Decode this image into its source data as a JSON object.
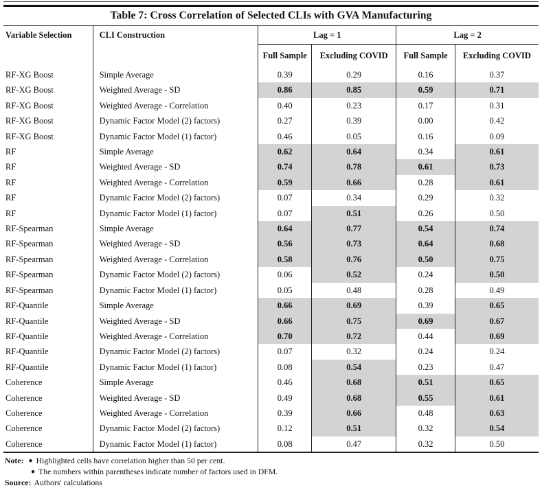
{
  "title": "Table 7: Cross Correlation of Selected CLIs with GVA Manufacturing",
  "colors": {
    "highlight": "#d3d3d4",
    "border": "#222222"
  },
  "table": {
    "columns": {
      "variable_selection": "Variable Selection",
      "cli_construction": "CLI Construction",
      "lag1": "Lag = 1",
      "lag2": "Lag = 2",
      "full_sample": "Full Sample",
      "excluding_covid": "Excluding COVID"
    },
    "rows": [
      {
        "variable": "RF-XG Boost",
        "construction": "Simple Average",
        "values": [
          "0.39",
          "0.29",
          "0.16",
          "0.37"
        ],
        "highlight": [
          0,
          0,
          0,
          0
        ]
      },
      {
        "variable": "RF-XG Boost",
        "construction": "Weighted Average - SD",
        "values": [
          "0.86",
          "0.85",
          "0.59",
          "0.71"
        ],
        "highlight": [
          1,
          1,
          1,
          1
        ]
      },
      {
        "variable": "RF-XG Boost",
        "construction": "Weighted Average - Correlation",
        "values": [
          "0.40",
          "0.23",
          "0.17",
          "0.31"
        ],
        "highlight": [
          0,
          0,
          0,
          0
        ]
      },
      {
        "variable": "RF-XG Boost",
        "construction": "Dynamic Factor Model (2) factors)",
        "values": [
          "0.27",
          "0.39",
          "0.00",
          "0.42"
        ],
        "highlight": [
          0,
          0,
          0,
          0
        ]
      },
      {
        "variable": "RF-XG Boost",
        "construction": "Dynamic Factor Model (1) factor)",
        "values": [
          "0.46",
          "0.05",
          "0.16",
          "0.09"
        ],
        "highlight": [
          0,
          0,
          0,
          0
        ]
      },
      {
        "variable": "RF",
        "construction": "Simple Average",
        "values": [
          "0.62",
          "0.64",
          "0.34",
          "0.61"
        ],
        "highlight": [
          1,
          1,
          0,
          1
        ]
      },
      {
        "variable": "RF",
        "construction": "Weighted Average - SD",
        "values": [
          "0.74",
          "0.78",
          "0.61",
          "0.73"
        ],
        "highlight": [
          1,
          1,
          1,
          1
        ]
      },
      {
        "variable": "RF",
        "construction": "Weighted Average - Correlation",
        "values": [
          "0.59",
          "0.66",
          "0.28",
          "0.61"
        ],
        "highlight": [
          1,
          1,
          0,
          1
        ]
      },
      {
        "variable": "RF",
        "construction": "Dynamic Factor Model (2) factors)",
        "values": [
          "0.07",
          "0.34",
          "0.29",
          "0.32"
        ],
        "highlight": [
          0,
          0,
          0,
          0
        ]
      },
      {
        "variable": "RF",
        "construction": "Dynamic Factor Model (1) factor)",
        "values": [
          "0.07",
          "0.51",
          "0.26",
          "0.50"
        ],
        "highlight": [
          0,
          1,
          0,
          0
        ]
      },
      {
        "variable": "RF-Spearman",
        "construction": "Simple Average",
        "values": [
          "0.64",
          "0.77",
          "0.54",
          "0.74"
        ],
        "highlight": [
          1,
          1,
          1,
          1
        ]
      },
      {
        "variable": "RF-Spearman",
        "construction": "Weighted Average - SD",
        "values": [
          "0.56",
          "0.73",
          "0.64",
          "0.68"
        ],
        "highlight": [
          1,
          1,
          1,
          1
        ]
      },
      {
        "variable": "RF-Spearman",
        "construction": "Weighted Average - Correlation",
        "values": [
          "0.58",
          "0.76",
          "0.50",
          "0.75"
        ],
        "highlight": [
          1,
          1,
          1,
          1
        ]
      },
      {
        "variable": "RF-Spearman",
        "construction": "Dynamic Factor Model (2) factors)",
        "values": [
          "0.06",
          "0.52",
          "0.24",
          "0.50"
        ],
        "highlight": [
          0,
          1,
          0,
          1
        ]
      },
      {
        "variable": "RF-Spearman",
        "construction": "Dynamic Factor Model (1) factor)",
        "values": [
          "0.05",
          "0.48",
          "0.28",
          "0.49"
        ],
        "highlight": [
          0,
          0,
          0,
          0
        ]
      },
      {
        "variable": "RF-Quantile",
        "construction": "Simple Average",
        "values": [
          "0.66",
          "0.69",
          "0.39",
          "0.65"
        ],
        "highlight": [
          1,
          1,
          0,
          1
        ]
      },
      {
        "variable": "RF-Quantile",
        "construction": "Weighted Average - SD",
        "values": [
          "0.66",
          "0.75",
          "0.69",
          "0.67"
        ],
        "highlight": [
          1,
          1,
          1,
          1
        ]
      },
      {
        "variable": "RF-Quantile",
        "construction": "Weighted Average - Correlation",
        "values": [
          "0.70",
          "0.72",
          "0.44",
          "0.69"
        ],
        "highlight": [
          1,
          1,
          0,
          1
        ]
      },
      {
        "variable": "RF-Quantile",
        "construction": "Dynamic Factor Model (2) factors)",
        "values": [
          "0.07",
          "0.32",
          "0.24",
          "0.24"
        ],
        "highlight": [
          0,
          0,
          0,
          0
        ]
      },
      {
        "variable": "RF-Quantile",
        "construction": "Dynamic Factor Model (1) factor)",
        "values": [
          "0.08",
          "0.54",
          "0.23",
          "0.47"
        ],
        "highlight": [
          0,
          1,
          0,
          0
        ]
      },
      {
        "variable": "Coherence",
        "construction": "Simple Average",
        "values": [
          "0.46",
          "0.68",
          "0.51",
          "0.65"
        ],
        "highlight": [
          0,
          1,
          1,
          1
        ]
      },
      {
        "variable": "Coherence",
        "construction": "Weighted Average - SD",
        "values": [
          "0.49",
          "0.68",
          "0.55",
          "0.61"
        ],
        "highlight": [
          0,
          1,
          1,
          1
        ]
      },
      {
        "variable": "Coherence",
        "construction": "Weighted Average - Correlation",
        "values": [
          "0.39",
          "0.66",
          "0.48",
          "0.63"
        ],
        "highlight": [
          0,
          1,
          0,
          1
        ]
      },
      {
        "variable": "Coherence",
        "construction": "Dynamic Factor Model (2) factors)",
        "values": [
          "0.12",
          "0.51",
          "0.32",
          "0.54"
        ],
        "highlight": [
          0,
          1,
          0,
          1
        ]
      },
      {
        "variable": "Coherence",
        "construction": "Dynamic Factor Model (1) factor)",
        "values": [
          "0.08",
          "0.47",
          "0.32",
          "0.50"
        ],
        "highlight": [
          0,
          0,
          0,
          0
        ]
      }
    ]
  },
  "notes": {
    "note_label": "Note:",
    "bullet": "●",
    "bullets": [
      "Highlighted cells have correlation higher than 50 per cent.",
      "The numbers within parentheses indicate number of factors used in DFM."
    ],
    "source_label": "Source:",
    "source_text": "Authors' calculations"
  }
}
